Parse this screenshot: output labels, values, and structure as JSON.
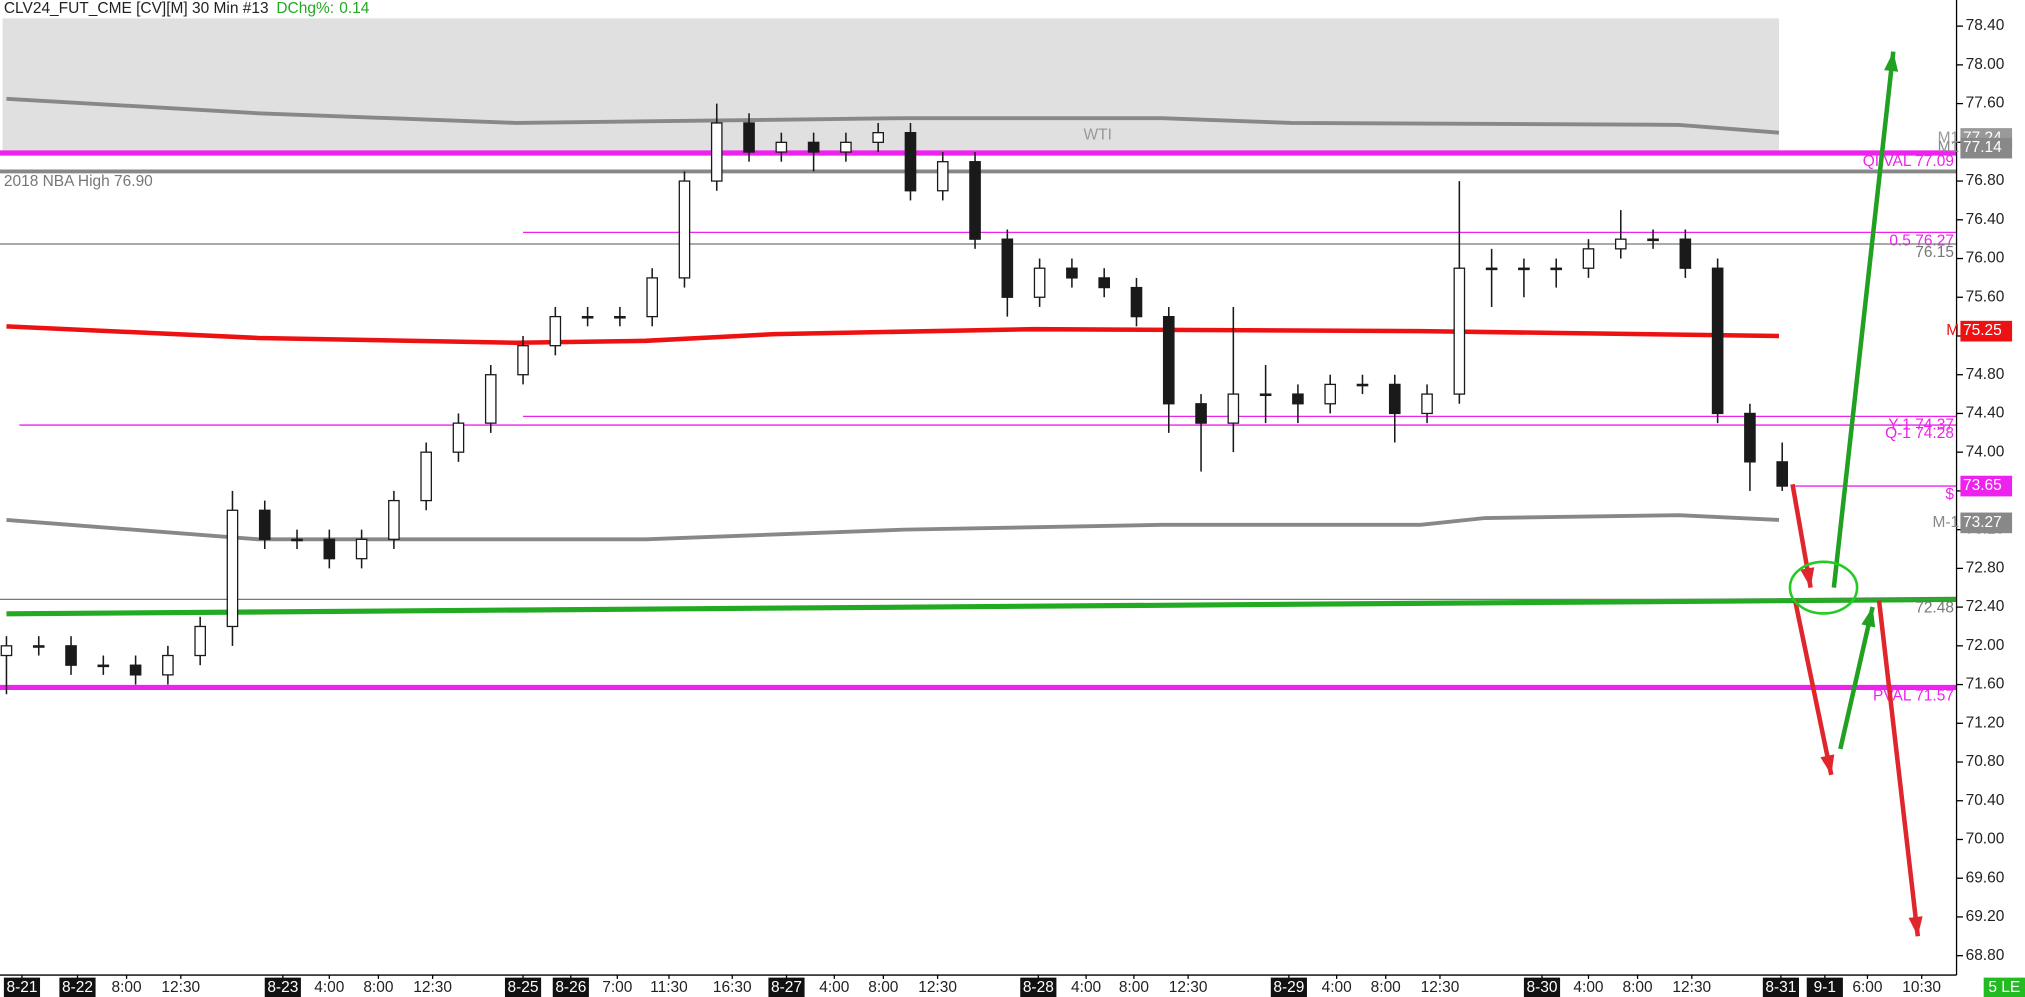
{
  "chart_data": {
    "type": "candlestick",
    "title": "CLV24_FUT_CME [CV][M] 30 Min #13",
    "change_label": "DChg%:",
    "change": 0.14,
    "watermark": "WTI",
    "corner_tag": "5 LE",
    "candle_color": "#1a1a1a",
    "xlim": [
      -0.2,
      60.4
    ],
    "ylim": [
      68.6,
      78.67
    ],
    "open": [
      71.9,
      72.0,
      72.0,
      71.8,
      71.8,
      71.7,
      71.9,
      72.2,
      73.4,
      73.1,
      73.1,
      72.9,
      73.1,
      73.5,
      74.0,
      74.3,
      74.8,
      75.1,
      75.4,
      75.4,
      75.4,
      75.8,
      76.8,
      77.4,
      77.1,
      77.2,
      77.1,
      77.2,
      77.3,
      76.7,
      77.0,
      76.2,
      75.6,
      75.9,
      75.8,
      75.7,
      75.4,
      74.5,
      74.3,
      74.6,
      74.6,
      74.5,
      74.7,
      74.7,
      74.4,
      74.6,
      75.9,
      75.9,
      75.9,
      75.9,
      76.1,
      76.2,
      76.2,
      75.9,
      74.4,
      73.9
    ],
    "high": [
      72.1,
      72.1,
      72.1,
      71.9,
      71.9,
      72.0,
      72.3,
      73.6,
      73.5,
      73.2,
      73.2,
      73.2,
      73.6,
      74.1,
      74.4,
      74.9,
      75.2,
      75.5,
      75.5,
      75.5,
      75.9,
      76.9,
      77.6,
      77.5,
      77.3,
      77.3,
      77.3,
      77.4,
      77.4,
      77.1,
      77.1,
      76.3,
      76.0,
      76.0,
      75.9,
      75.8,
      75.5,
      74.6,
      75.5,
      74.9,
      74.7,
      74.8,
      74.8,
      74.8,
      74.7,
      76.8,
      76.1,
      76.0,
      76.0,
      76.2,
      76.5,
      76.3,
      76.3,
      76.0,
      74.5,
      74.1
    ],
    "low": [
      71.5,
      71.9,
      71.7,
      71.7,
      71.6,
      71.6,
      71.8,
      72.0,
      73.0,
      73.0,
      72.8,
      72.8,
      73.0,
      73.4,
      73.9,
      74.2,
      74.7,
      75.0,
      75.3,
      75.3,
      75.3,
      75.7,
      76.7,
      77.0,
      77.0,
      76.9,
      77.0,
      77.1,
      76.6,
      76.6,
      76.1,
      75.4,
      75.5,
      75.7,
      75.6,
      75.3,
      74.2,
      73.8,
      74.0,
      74.3,
      74.3,
      74.4,
      74.6,
      74.1,
      74.3,
      74.5,
      75.5,
      75.6,
      75.7,
      75.8,
      76.0,
      76.1,
      75.8,
      74.3,
      73.6,
      73.6
    ],
    "close": [
      72.0,
      72.0,
      71.8,
      71.8,
      71.7,
      71.9,
      72.2,
      73.4,
      73.1,
      73.1,
      72.9,
      73.1,
      73.5,
      74.0,
      74.3,
      74.8,
      75.1,
      75.4,
      75.4,
      75.4,
      75.8,
      76.8,
      77.4,
      77.1,
      77.2,
      77.1,
      77.2,
      77.3,
      76.7,
      77.0,
      76.2,
      75.6,
      75.9,
      75.8,
      75.7,
      75.4,
      74.5,
      74.3,
      74.6,
      74.6,
      74.5,
      74.7,
      74.7,
      74.4,
      74.6,
      75.9,
      75.9,
      75.9,
      75.9,
      76.1,
      76.2,
      76.2,
      75.9,
      74.4,
      73.9,
      73.65
    ],
    "shade": {
      "from": 77.09,
      "to": 78.48,
      "color": "#e0e0e0"
    },
    "curves": [
      {
        "color": "#888888",
        "width": 3,
        "x": [
          0,
          7.8,
          15.8,
          27.8,
          35.8,
          39.8,
          51.8,
          54.9
        ],
        "values": [
          77.65,
          77.5,
          77.4,
          77.45,
          77.45,
          77.4,
          77.38,
          77.3
        ]
      },
      {
        "color": "#ee1111",
        "width": 3.5,
        "x": [
          0,
          7.8,
          15.8,
          19.8,
          23.8,
          31.8,
          43.8,
          54.9
        ],
        "values": [
          75.3,
          75.18,
          75.13,
          75.15,
          75.22,
          75.27,
          75.25,
          75.2
        ]
      },
      {
        "color": "#888888",
        "width": 3,
        "x": [
          0,
          7.8,
          19.8,
          27.8,
          35.8,
          43.8,
          45.8,
          51.8,
          54.9
        ],
        "values": [
          73.3,
          73.1,
          73.1,
          73.2,
          73.25,
          73.25,
          73.32,
          73.35,
          73.3
        ]
      },
      {
        "color": "#22aa22",
        "width": 4,
        "x": [
          0,
          60.4
        ],
        "values": [
          72.33,
          72.48
        ]
      }
    ],
    "levels": [
      {
        "value": 77.09,
        "label": "QI VAL 77.09",
        "color": "#ee22ee",
        "width": 4,
        "x_from": -0.2,
        "side": "right"
      },
      {
        "value": 76.9,
        "label": "2018 NBA High 76.90",
        "color": "#888888",
        "width": 3,
        "x_from": -0.2,
        "side": "left"
      },
      {
        "value": 76.27,
        "label": "0.5 76.27",
        "color": "#ee22ee",
        "width": 1,
        "x_from": 16,
        "side": "right"
      },
      {
        "value": 76.15,
        "label": "76.15",
        "color": "#777777",
        "width": 1,
        "x_from": -0.2,
        "side": "right"
      },
      {
        "value": 74.37,
        "label": "Y-1 74.37",
        "color": "#ee22ee",
        "width": 1,
        "x_from": 16,
        "side": "right"
      },
      {
        "value": 74.28,
        "label": "Q-1 74.28",
        "color": "#ee22ee",
        "width": 1,
        "x_from": 0.4,
        "side": "right"
      },
      {
        "value": 73.65,
        "label": "$",
        "color": "#ee22ee",
        "width": 1,
        "x_from": 55.4,
        "side": "right"
      },
      {
        "value": 72.48,
        "label": "72.48",
        "color": "#777777",
        "width": 1,
        "x_from": -0.2,
        "side": "right"
      },
      {
        "value": 71.57,
        "label": "PVAL 71.57",
        "color": "#ee22ee",
        "width": 4,
        "x_from": -0.2,
        "side": "right"
      }
    ],
    "tags": [
      {
        "name": "M1",
        "value": 77.24,
        "label": "77.24",
        "color": "#999999"
      },
      {
        "name": "M1",
        "value": 77.14,
        "label": "77.14",
        "color": "#888888"
      },
      {
        "name": "M",
        "value": 75.25,
        "label": "75.25",
        "color": "#ee1111"
      },
      {
        "value": 73.65,
        "label": "73.65",
        "color": "#ee22ee"
      },
      {
        "name": "M-1",
        "value": 73.27,
        "label": "73.27",
        "color": "#888888"
      }
    ],
    "yticks": [
      {
        "value": 68.8,
        "label": "68.80"
      },
      {
        "value": 69.2,
        "label": "69.20"
      },
      {
        "value": 69.6,
        "label": "69.60"
      },
      {
        "value": 70.0,
        "label": "70.00"
      },
      {
        "value": 70.4,
        "label": "70.40"
      },
      {
        "value": 70.8,
        "label": "70.80"
      },
      {
        "value": 71.2,
        "label": "71.20"
      },
      {
        "value": 71.6,
        "label": "71.60"
      },
      {
        "value": 72.0,
        "label": "72.00"
      },
      {
        "value": 72.4,
        "label": "72.40"
      },
      {
        "value": 72.8,
        "label": "72.80"
      },
      {
        "value": 73.2,
        "label": "73.20"
      },
      {
        "value": 73.6,
        "label": "73.60"
      },
      {
        "value": 74.0,
        "label": "74.00"
      },
      {
        "value": 74.4,
        "label": "74.40"
      },
      {
        "value": 74.8,
        "label": "74.80"
      },
      {
        "value": 75.2,
        "label": "75.20"
      },
      {
        "value": 75.6,
        "label": "75.60"
      },
      {
        "value": 76.0,
        "label": "76.00"
      },
      {
        "value": 76.4,
        "label": "76.40"
      },
      {
        "value": 76.8,
        "label": "76.80"
      },
      {
        "value": 77.2,
        "label": "77.20"
      },
      {
        "value": 77.6,
        "label": "77.60"
      },
      {
        "value": 78.0,
        "label": "78.00"
      },
      {
        "value": 78.4,
        "label": "78.40"
      }
    ],
    "xticks": [
      {
        "value": 0.48,
        "label": "8-21"
      },
      {
        "value": 2.2,
        "label": "8-22"
      },
      {
        "value": 3.72,
        "label": "8:00"
      },
      {
        "value": 5.4,
        "label": "12:30"
      },
      {
        "value": 8.56,
        "label": "8-23"
      },
      {
        "value": 10,
        "label": "4:00"
      },
      {
        "value": 11.52,
        "label": "8:00"
      },
      {
        "value": 13.2,
        "label": "12:30"
      },
      {
        "value": 16,
        "label": "8-25"
      },
      {
        "value": 17.48,
        "label": "8-26"
      },
      {
        "value": 18.92,
        "label": "7:00"
      },
      {
        "value": 20.52,
        "label": "11:30"
      },
      {
        "value": 22.48,
        "label": "16:30"
      },
      {
        "value": 24.16,
        "label": "8-27"
      },
      {
        "value": 25.64,
        "label": "4:00"
      },
      {
        "value": 27.16,
        "label": "8:00"
      },
      {
        "value": 28.84,
        "label": "12:30"
      },
      {
        "value": 31.96,
        "label": "8-28"
      },
      {
        "value": 33.44,
        "label": "4:00"
      },
      {
        "value": 34.92,
        "label": "8:00"
      },
      {
        "value": 36.6,
        "label": "12:30"
      },
      {
        "value": 39.72,
        "label": "8-29"
      },
      {
        "value": 41.2,
        "label": "4:00"
      },
      {
        "value": 42.72,
        "label": "8:00"
      },
      {
        "value": 44.4,
        "label": "12:30"
      },
      {
        "value": 47.56,
        "label": "8-30"
      },
      {
        "value": 49,
        "label": "4:00"
      },
      {
        "value": 50.52,
        "label": "8:00"
      },
      {
        "value": 52.2,
        "label": "12:30"
      },
      {
        "value": 54.96,
        "label": "8-31"
      },
      {
        "value": 56.32,
        "label": "9-1"
      },
      {
        "value": 57.64,
        "label": "6:00"
      },
      {
        "value": 59.32,
        "label": "10:30"
      }
    ]
  }
}
